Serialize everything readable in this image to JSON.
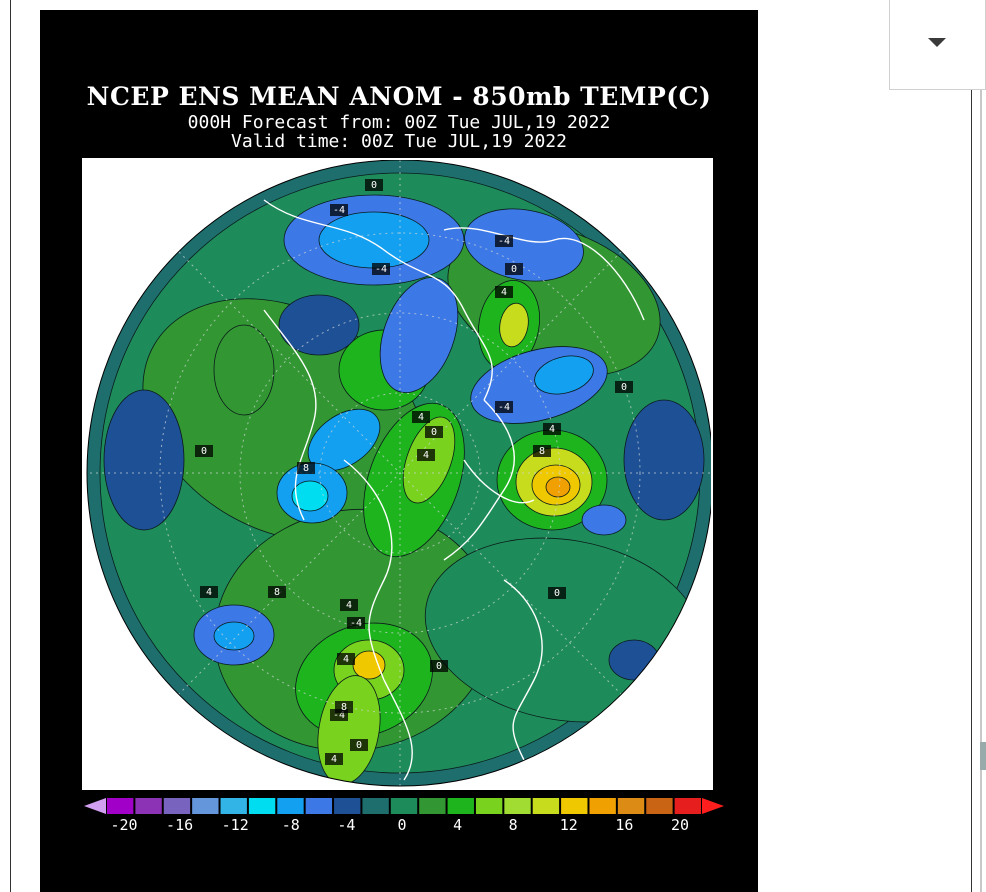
{
  "map": {
    "title": "NCEP ENS MEAN ANOM - 850mb TEMP(C)",
    "forecast_line": "000H Forecast from: 00Z Tue JUL,19 2022",
    "valid_line": "Valid time: 00Z Tue JUL,19 2022",
    "projection": "north-polar-stereographic",
    "contour_labels": [
      "0",
      "-4",
      "-4",
      "-4",
      "0",
      "4",
      "4",
      "8",
      "-4",
      "0",
      "4",
      "8",
      "4",
      "-4",
      "0",
      "0",
      "0",
      "4",
      "8",
      "-4",
      "0",
      "4",
      "0",
      "4",
      "8",
      "4"
    ]
  },
  "colorbar": {
    "colors": [
      "#a000c8",
      "#8c32b4",
      "#7864be",
      "#6496dc",
      "#32b4e6",
      "#00dcf0",
      "#14a0f0",
      "#3c78e6",
      "#1e5096",
      "#1e6e6e",
      "#1e8c5a",
      "#329632",
      "#1eb41e",
      "#78d21e",
      "#a0dc32",
      "#c8dc1e",
      "#f0c800",
      "#f0a000",
      "#dc8c14",
      "#c86414",
      "#e61e1e"
    ],
    "left_arrow_color": "#d2a0f0",
    "right_arrow_color": "#ff1e1e",
    "tick_labels": [
      "-20",
      "-16",
      "-12",
      "-8",
      "-4",
      "0",
      "4",
      "8",
      "12",
      "16",
      "20"
    ],
    "tick_values": [
      -20,
      -16,
      -12,
      -8,
      -4,
      0,
      4,
      8,
      12,
      16,
      20
    ]
  },
  "selector": {
    "icon": "chevron-down-icon"
  }
}
